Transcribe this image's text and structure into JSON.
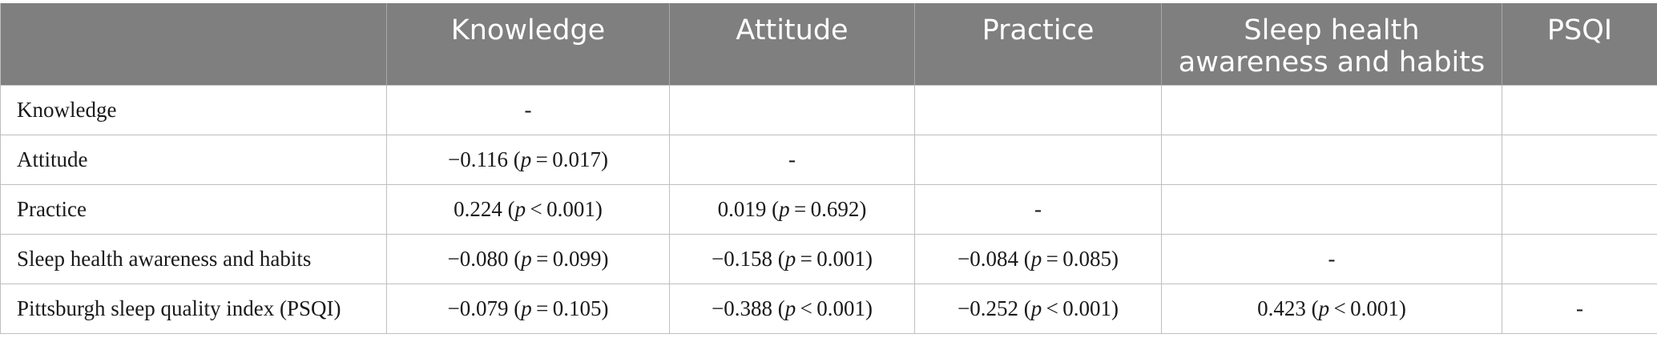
{
  "table": {
    "headers": [
      "",
      "Knowledge",
      "Attitude",
      "Practice",
      "Sleep health awareness and habits",
      "PSQI"
    ],
    "rows": [
      {
        "label": "Knowledge",
        "cells": [
          "-",
          "",
          "",
          "",
          ""
        ]
      },
      {
        "label": "Attitude",
        "cells": [
          "−0.116 (p = 0.017)",
          "-",
          "",
          "",
          ""
        ]
      },
      {
        "label": "Practice",
        "cells": [
          "0.224 (p < 0.001)",
          "0.019 (p = 0.692)",
          "-",
          "",
          ""
        ]
      },
      {
        "label": "Sleep health awareness and habits",
        "cells": [
          "−0.080 (p = 0.099)",
          "−0.158 (p = 0.001)",
          "−0.084 (p = 0.085)",
          "-",
          ""
        ]
      },
      {
        "label": "Pittsburgh sleep quality index (PSQI)",
        "cells": [
          "−0.079 (p = 0.105)",
          "−0.388 (p < 0.001)",
          "−0.252 (p < 0.001)",
          "0.423 (p < 0.001)",
          "-"
        ]
      }
    ]
  },
  "colors": {
    "header_bg": "#7f7f7f",
    "header_text": "#ffffff",
    "grid": "#bfbfbf",
    "body_text": "#1a1a1a"
  }
}
